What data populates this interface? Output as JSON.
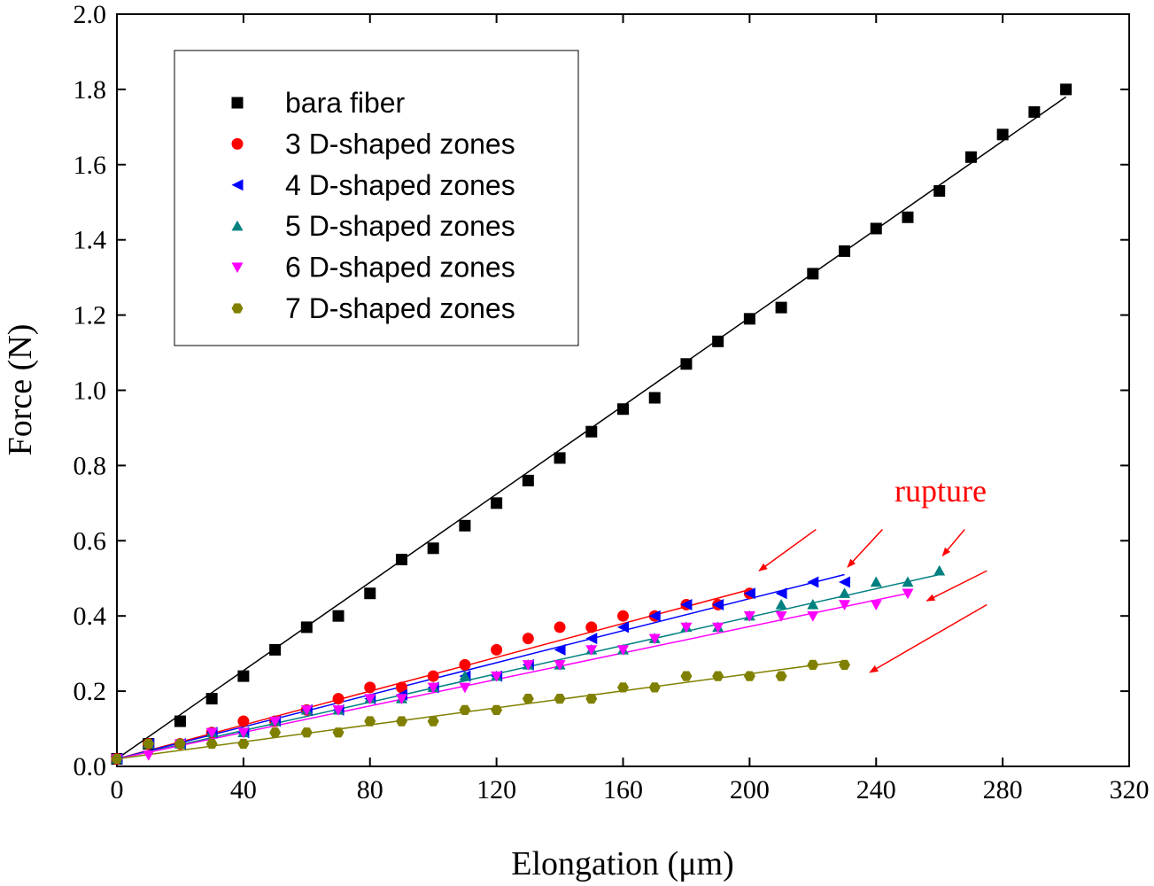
{
  "chart_data": {
    "type": "scatter",
    "xlabel": "Elongation (μm)",
    "ylabel": "Force (N)",
    "xlim": [
      0,
      320
    ],
    "ylim": [
      0,
      2.0
    ],
    "x_ticks": [
      "0",
      "40",
      "80",
      "120",
      "160",
      "200",
      "240",
      "280",
      "320"
    ],
    "y_ticks": [
      "0.0",
      "0.2",
      "0.4",
      "0.6",
      "0.8",
      "1.0",
      "1.2",
      "1.4",
      "1.6",
      "1.8",
      "2.0"
    ],
    "legend_position": "top-left",
    "grid": false,
    "series": [
      {
        "name": "bara fiber",
        "marker": "square",
        "color": "#000000",
        "points": [
          [
            0,
            0.02
          ],
          [
            10,
            0.06
          ],
          [
            20,
            0.12
          ],
          [
            30,
            0.18
          ],
          [
            40,
            0.24
          ],
          [
            50,
            0.31
          ],
          [
            60,
            0.37
          ],
          [
            70,
            0.4
          ],
          [
            80,
            0.46
          ],
          [
            90,
            0.55
          ],
          [
            100,
            0.58
          ],
          [
            110,
            0.64
          ],
          [
            120,
            0.7
          ],
          [
            130,
            0.76
          ],
          [
            140,
            0.82
          ],
          [
            150,
            0.89
          ],
          [
            160,
            0.95
          ],
          [
            170,
            0.98
          ],
          [
            180,
            1.07
          ],
          [
            190,
            1.13
          ],
          [
            200,
            1.19
          ],
          [
            210,
            1.22
          ],
          [
            220,
            1.31
          ],
          [
            230,
            1.37
          ],
          [
            240,
            1.43
          ],
          [
            250,
            1.46
          ],
          [
            260,
            1.53
          ],
          [
            270,
            1.62
          ],
          [
            280,
            1.68
          ],
          [
            290,
            1.74
          ],
          [
            300,
            1.8
          ]
        ],
        "fit": [
          [
            0,
            0.02
          ],
          [
            300,
            1.78
          ]
        ]
      },
      {
        "name": "3 D-shaped zones",
        "marker": "circle",
        "color": "#ff0000",
        "points": [
          [
            0,
            0.02
          ],
          [
            10,
            0.06
          ],
          [
            20,
            0.06
          ],
          [
            30,
            0.09
          ],
          [
            40,
            0.12
          ],
          [
            50,
            0.12
          ],
          [
            60,
            0.15
          ],
          [
            70,
            0.18
          ],
          [
            80,
            0.21
          ],
          [
            90,
            0.21
          ],
          [
            100,
            0.24
          ],
          [
            110,
            0.27
          ],
          [
            120,
            0.31
          ],
          [
            130,
            0.34
          ],
          [
            140,
            0.37
          ],
          [
            150,
            0.37
          ],
          [
            160,
            0.4
          ],
          [
            170,
            0.4
          ],
          [
            180,
            0.43
          ],
          [
            190,
            0.43
          ],
          [
            200,
            0.46
          ]
        ],
        "fit": [
          [
            0,
            0.02
          ],
          [
            200,
            0.47
          ]
        ]
      },
      {
        "name": "4 D-shaped zones",
        "marker": "triangle-left",
        "color": "#0000ff",
        "points": [
          [
            0,
            0.02
          ],
          [
            10,
            0.06
          ],
          [
            20,
            0.06
          ],
          [
            30,
            0.09
          ],
          [
            40,
            0.09
          ],
          [
            50,
            0.12
          ],
          [
            60,
            0.15
          ],
          [
            70,
            0.15
          ],
          [
            80,
            0.18
          ],
          [
            90,
            0.19
          ],
          [
            100,
            0.21
          ],
          [
            110,
            0.24
          ],
          [
            120,
            0.24
          ],
          [
            130,
            0.27
          ],
          [
            140,
            0.31
          ],
          [
            150,
            0.34
          ],
          [
            160,
            0.37
          ],
          [
            170,
            0.4
          ],
          [
            180,
            0.43
          ],
          [
            190,
            0.43
          ],
          [
            200,
            0.46
          ],
          [
            210,
            0.46
          ],
          [
            220,
            0.49
          ],
          [
            230,
            0.49
          ]
        ],
        "fit": [
          [
            0,
            0.02
          ],
          [
            230,
            0.51
          ]
        ]
      },
      {
        "name": "5 D-shaped zones",
        "marker": "triangle-up",
        "color": "#008080",
        "points": [
          [
            0,
            0.02
          ],
          [
            10,
            0.06
          ],
          [
            20,
            0.06
          ],
          [
            30,
            0.09
          ],
          [
            40,
            0.09
          ],
          [
            50,
            0.12
          ],
          [
            60,
            0.15
          ],
          [
            70,
            0.15
          ],
          [
            80,
            0.18
          ],
          [
            90,
            0.18
          ],
          [
            100,
            0.21
          ],
          [
            110,
            0.24
          ],
          [
            120,
            0.24
          ],
          [
            130,
            0.27
          ],
          [
            140,
            0.27
          ],
          [
            150,
            0.31
          ],
          [
            160,
            0.31
          ],
          [
            170,
            0.34
          ],
          [
            180,
            0.37
          ],
          [
            190,
            0.37
          ],
          [
            200,
            0.4
          ],
          [
            210,
            0.43
          ],
          [
            220,
            0.43
          ],
          [
            230,
            0.46
          ],
          [
            240,
            0.49
          ],
          [
            250,
            0.49
          ],
          [
            260,
            0.52
          ]
        ],
        "fit": [
          [
            0,
            0.02
          ],
          [
            260,
            0.51
          ]
        ]
      },
      {
        "name": "6 D-shaped zones",
        "marker": "triangle-down",
        "color": "#ff00ff",
        "points": [
          [
            0,
            0.02
          ],
          [
            10,
            0.03
          ],
          [
            20,
            0.06
          ],
          [
            30,
            0.09
          ],
          [
            40,
            0.09
          ],
          [
            50,
            0.12
          ],
          [
            60,
            0.15
          ],
          [
            70,
            0.15
          ],
          [
            80,
            0.18
          ],
          [
            90,
            0.18
          ],
          [
            100,
            0.21
          ],
          [
            110,
            0.21
          ],
          [
            120,
            0.24
          ],
          [
            130,
            0.27
          ],
          [
            140,
            0.27
          ],
          [
            150,
            0.31
          ],
          [
            160,
            0.31
          ],
          [
            170,
            0.34
          ],
          [
            180,
            0.37
          ],
          [
            190,
            0.37
          ],
          [
            200,
            0.4
          ],
          [
            210,
            0.4
          ],
          [
            220,
            0.4
          ],
          [
            230,
            0.43
          ],
          [
            240,
            0.43
          ],
          [
            250,
            0.46
          ]
        ],
        "fit": [
          [
            0,
            0.02
          ],
          [
            250,
            0.46
          ]
        ]
      },
      {
        "name": "7 D-shaped zones",
        "marker": "hexagon",
        "color": "#808000",
        "points": [
          [
            0,
            0.02
          ],
          [
            10,
            0.06
          ],
          [
            20,
            0.06
          ],
          [
            30,
            0.06
          ],
          [
            40,
            0.06
          ],
          [
            50,
            0.09
          ],
          [
            60,
            0.09
          ],
          [
            70,
            0.09
          ],
          [
            80,
            0.12
          ],
          [
            90,
            0.12
          ],
          [
            100,
            0.12
          ],
          [
            110,
            0.15
          ],
          [
            120,
            0.15
          ],
          [
            130,
            0.18
          ],
          [
            140,
            0.18
          ],
          [
            150,
            0.18
          ],
          [
            160,
            0.21
          ],
          [
            170,
            0.21
          ],
          [
            180,
            0.24
          ],
          [
            190,
            0.24
          ],
          [
            200,
            0.24
          ],
          [
            210,
            0.24
          ],
          [
            220,
            0.27
          ],
          [
            230,
            0.27
          ]
        ],
        "fit": [
          [
            0,
            0.02
          ],
          [
            230,
            0.28
          ]
        ]
      }
    ],
    "annotations": [
      {
        "text": "rupture",
        "color": "#ff0000",
        "arrows": [
          {
            "from": [
              221,
              0.63
            ],
            "to": [
              203,
              0.52
            ]
          },
          {
            "from": [
              242,
              0.63
            ],
            "to": [
              231,
              0.53
            ]
          },
          {
            "from": [
              268,
              0.63
            ],
            "to": [
              261,
              0.56
            ]
          },
          {
            "from": [
              275,
              0.52
            ],
            "to": [
              256,
              0.44
            ]
          },
          {
            "from": [
              275,
              0.43
            ],
            "to": [
              238,
              0.25
            ]
          }
        ]
      }
    ]
  }
}
